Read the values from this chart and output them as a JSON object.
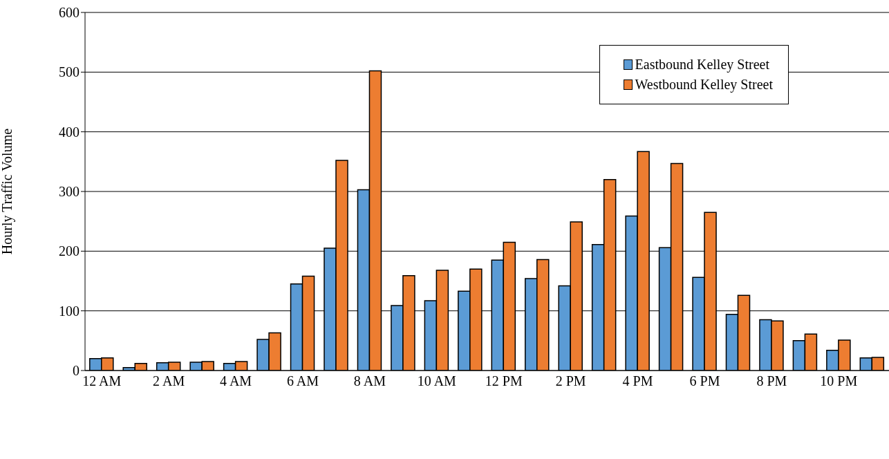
{
  "chart_data": {
    "type": "bar",
    "ylabel": "Hourly Traffic Volume",
    "categories": [
      "12 AM",
      null,
      "2 AM",
      null,
      "4 AM",
      null,
      "6 AM",
      null,
      "8 AM",
      null,
      "10 AM",
      null,
      "12 PM",
      null,
      "2 PM",
      null,
      "4 PM",
      null,
      "6 PM",
      null,
      "8 PM",
      null,
      "10 PM",
      null
    ],
    "series": [
      {
        "name": "Eastbound Kelley Street",
        "color": "#5b9bd5",
        "values": [
          20,
          5,
          13,
          14,
          12,
          52,
          145,
          205,
          303,
          109,
          117,
          133,
          185,
          154,
          142,
          211,
          259,
          206,
          156,
          94,
          85,
          50,
          34,
          21
        ]
      },
      {
        "name": "Westbound Kelley Street",
        "color": "#ed7d31",
        "values": [
          21,
          12,
          14,
          15,
          15,
          63,
          158,
          352,
          502,
          159,
          168,
          170,
          215,
          186,
          249,
          320,
          367,
          347,
          265,
          126,
          83,
          61,
          51,
          22
        ]
      }
    ],
    "ylim": [
      0,
      600
    ],
    "yticks": [
      0,
      100,
      200,
      300,
      400,
      500,
      600
    ],
    "grid": "y",
    "legend": "top right"
  }
}
